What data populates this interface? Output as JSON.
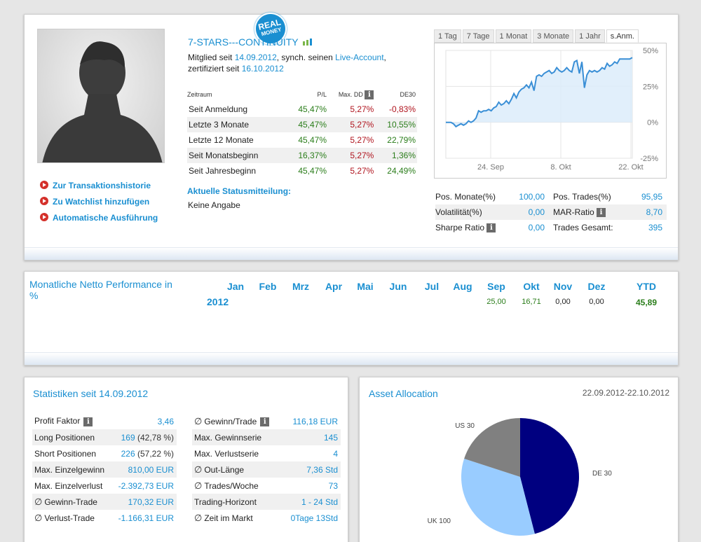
{
  "profile": {
    "name": "7-STARS---CONTINUITY",
    "badge_line1": "REAL",
    "badge_line2": "MONEY",
    "member_prefix": "Mitglied seit",
    "member_since": "14.09.2012",
    "sync_text": ", synch. seinen",
    "account_type": "Live-Account",
    "comma": ",",
    "certified_prefix": "zertifiziert seit",
    "certified_since": "16.10.2012",
    "actions": [
      {
        "label": "Zur Transaktionshistorie"
      },
      {
        "label": "Zu Watchlist hinzufügen"
      },
      {
        "label": "Automatische Ausführung"
      }
    ],
    "status_heading": "Aktuelle Statusmitteilung:",
    "status_text": "Keine Angabe"
  },
  "performance": {
    "headers": [
      "Zeitraum",
      "P/L",
      "Max. DD",
      "DE30"
    ],
    "rows": [
      {
        "period": "Seit Anmeldung",
        "pl": "45,47%",
        "dd": "5,27%",
        "de30": "-0,83%"
      },
      {
        "period": "Letzte 3 Monate",
        "pl": "45,47%",
        "dd": "5,27%",
        "de30": "10,55%"
      },
      {
        "period": "Letzte 12 Monate",
        "pl": "45,47%",
        "dd": "5,27%",
        "de30": "22,79%"
      },
      {
        "period": "Seit Monatsbeginn",
        "pl": "16,37%",
        "dd": "5,27%",
        "de30": "1,36%"
      },
      {
        "period": "Seit Jahresbeginn",
        "pl": "45,47%",
        "dd": "5,27%",
        "de30": "24,49%"
      }
    ]
  },
  "chart_tabs": [
    "1 Tag",
    "7 Tage",
    "1 Monat",
    "3 Monate",
    "1 Jahr",
    "s.Anm."
  ],
  "chart_data": [
    {
      "type": "area",
      "x_labels": [
        "24. Sep",
        "8. Okt",
        "22. Okt"
      ],
      "y_ticks": [
        "50%",
        "25%",
        "0%",
        "-25%"
      ],
      "ylim": [
        -25,
        50
      ],
      "values": [
        0,
        0,
        0,
        -1,
        -3,
        -2,
        -1,
        -2,
        -1,
        1,
        0,
        1,
        3,
        8,
        7,
        8,
        8,
        9,
        8,
        10,
        11,
        14,
        12,
        13,
        15,
        13,
        16,
        20,
        17,
        21,
        23,
        24,
        26,
        24,
        28,
        22,
        32,
        33,
        32,
        34,
        35,
        36,
        34,
        35,
        38,
        36,
        35,
        36,
        38,
        36,
        35,
        42,
        43,
        34,
        42,
        24,
        33,
        36,
        35,
        36,
        35,
        36,
        38,
        37,
        41,
        39,
        40,
        42,
        41,
        44,
        44,
        44,
        44,
        44,
        45
      ]
    },
    {
      "type": "pie",
      "title": "Asset Allocation",
      "date_range": "22.09.2012-22.10.2012",
      "slices": [
        {
          "label": "DE 30",
          "value": 46,
          "color": "#000080"
        },
        {
          "label": "UK 100",
          "value": 34,
          "color": "#99ccff"
        },
        {
          "label": "US 30",
          "value": 20,
          "color": "#808080"
        }
      ]
    }
  ],
  "metrics": [
    {
      "l1": "Pos. Monate(%)",
      "v1": "100,00",
      "l2": "Pos. Trades(%)",
      "v2": "95,95",
      "info2": false
    },
    {
      "l1": "Volatilität(%)",
      "v1": "0,00",
      "l2": "MAR-Ratio",
      "v2": "8,70",
      "info2": true
    },
    {
      "l1": "Sharpe Ratio",
      "v1": "0,00",
      "l2": "Trades Gesamt:",
      "v2": "395",
      "info1": true
    }
  ],
  "monthly": {
    "title": "Monatliche Netto Performance in %",
    "months": [
      "Jan",
      "Feb",
      "Mrz",
      "Apr",
      "Mai",
      "Jun",
      "Jul",
      "Aug",
      "Sep",
      "Okt",
      "Nov",
      "Dez",
      "YTD"
    ],
    "year": "2012",
    "values": [
      "",
      "",
      "",
      "",
      "",
      "",
      "",
      "",
      "25,00",
      "16,71",
      "0,00",
      "0,00",
      "45,89"
    ]
  },
  "stats": {
    "title": "Statistiken seit 14.09.2012",
    "left": [
      {
        "label": "Profit Faktor",
        "value": "3,46",
        "info": true
      },
      {
        "label": "Long Positionen",
        "value": "169",
        "extra": " (42,78 %)"
      },
      {
        "label": "Short Positionen",
        "value": "226",
        "extra": " (57,22 %)"
      },
      {
        "label": "Max. Einzelgewinn",
        "value": "810,00 EUR"
      },
      {
        "label": "Max. Einzelverlust",
        "value": "-2.392,73 EUR"
      },
      {
        "label": "Gewinn-Trade",
        "value": "170,32 EUR",
        "avg": true
      },
      {
        "label": "Verlust-Trade",
        "value": "-1.166,31 EUR",
        "avg": true
      }
    ],
    "right": [
      {
        "label": "Gewinn/Trade",
        "value": "116,18 EUR",
        "avg": true,
        "info": true
      },
      {
        "label": "Max. Gewinnserie",
        "value": "145"
      },
      {
        "label": "Max. Verlustserie",
        "value": "4"
      },
      {
        "label": "Out-Länge",
        "value": "7,36 Std",
        "avg": true
      },
      {
        "label": "Trades/Woche",
        "value": "73",
        "avg": true
      },
      {
        "label": "Trading-Horizont",
        "value": "1 - 24 Std"
      },
      {
        "label": "Zeit im Markt",
        "value": "0Tage 13Std",
        "avg": true
      }
    ]
  },
  "symbols": {
    "avg": "∅",
    "info": "i"
  }
}
